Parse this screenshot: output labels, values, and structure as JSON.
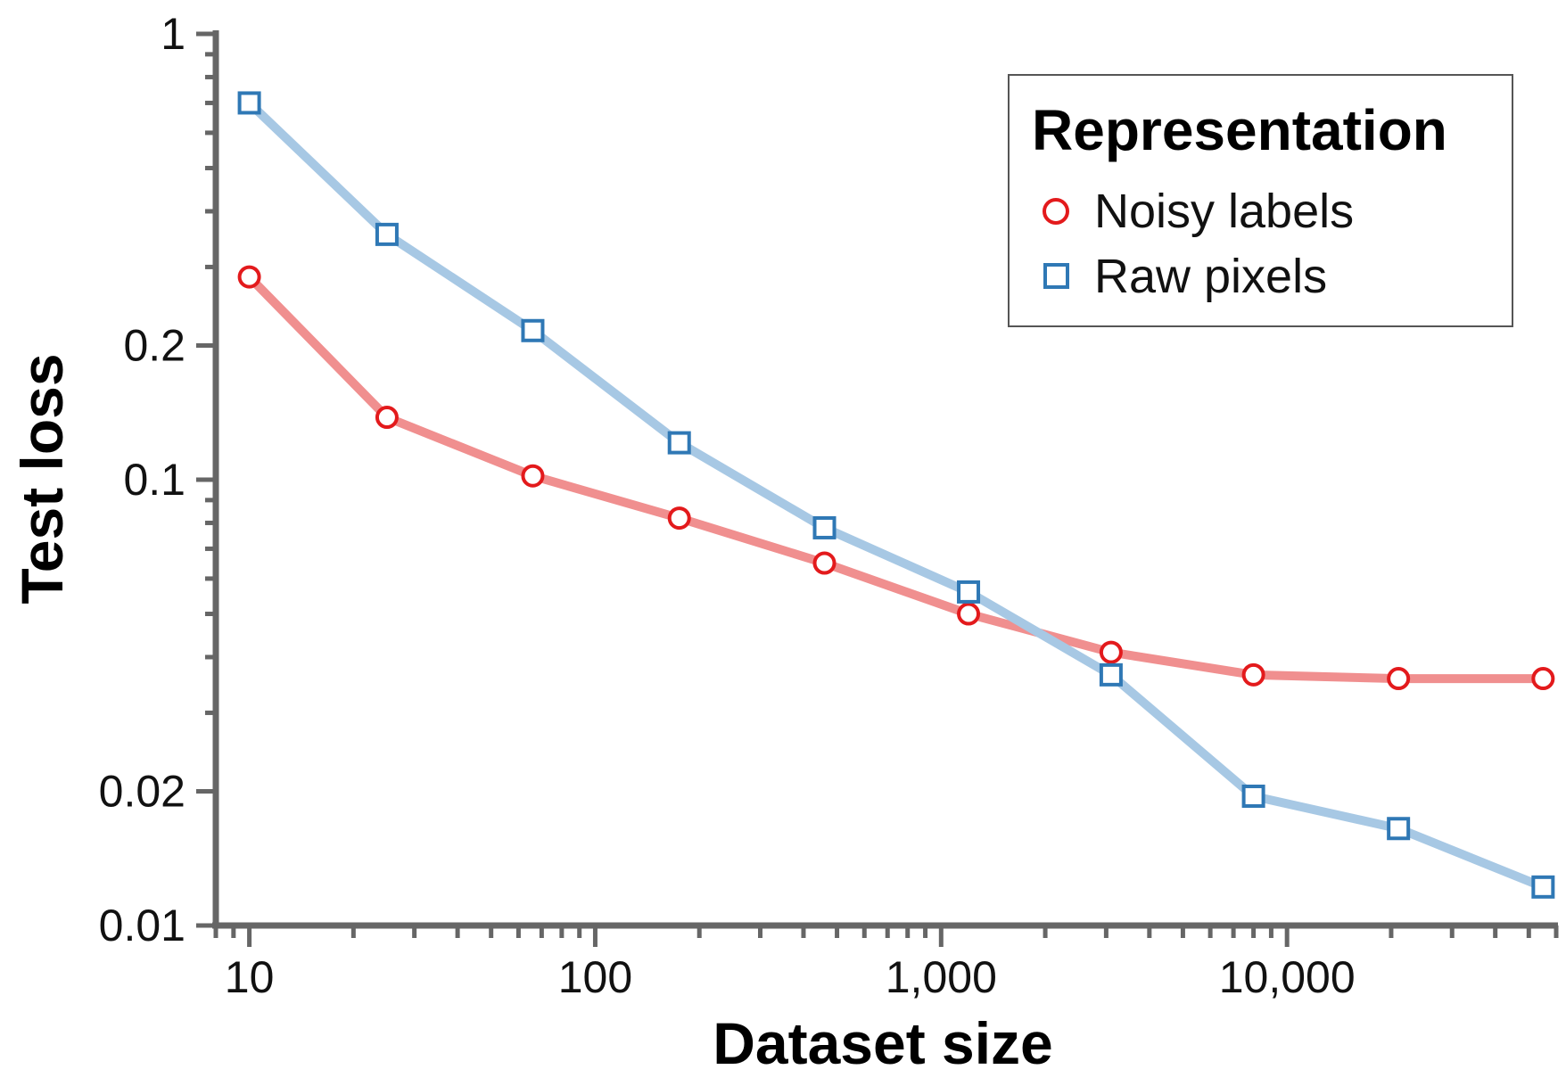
{
  "chart_data": {
    "type": "line",
    "title": "",
    "xlabel": "Dataset size",
    "ylabel": "Test loss",
    "x_scale": "log",
    "y_scale": "log",
    "xlim": [
      8,
      60000
    ],
    "ylim": [
      0.01,
      1
    ],
    "grid": false,
    "legend_position": "top-right",
    "legend_title": "Representation",
    "x_ticks": [
      {
        "value": 10,
        "label": "10"
      },
      {
        "value": 100,
        "label": "100"
      },
      {
        "value": 1000,
        "label": "1,000"
      },
      {
        "value": 10000,
        "label": "10,000"
      }
    ],
    "y_ticks": [
      {
        "value": 1,
        "label": "1"
      },
      {
        "value": 0.2,
        "label": "0.2"
      },
      {
        "value": 0.1,
        "label": "0.1"
      },
      {
        "value": 0.02,
        "label": "0.02"
      },
      {
        "value": 0.01,
        "label": "0.01"
      }
    ],
    "series": [
      {
        "name": "Noisy labels",
        "marker": "circle",
        "marker_color": "#e31a1c",
        "line_color": "#f08f8f",
        "points": [
          {
            "x": 10,
            "y": 0.285
          },
          {
            "x": 25,
            "y": 0.138
          },
          {
            "x": 66,
            "y": 0.102
          },
          {
            "x": 175,
            "y": 0.082
          },
          {
            "x": 460,
            "y": 0.065
          },
          {
            "x": 1200,
            "y": 0.05
          },
          {
            "x": 3100,
            "y": 0.041
          },
          {
            "x": 8000,
            "y": 0.0365
          },
          {
            "x": 21000,
            "y": 0.0358
          },
          {
            "x": 55000,
            "y": 0.0358
          }
        ]
      },
      {
        "name": "Raw pixels",
        "marker": "square",
        "marker_color": "#2f78b5",
        "line_color": "#a7c8e4",
        "points": [
          {
            "x": 10,
            "y": 0.7
          },
          {
            "x": 25,
            "y": 0.355
          },
          {
            "x": 66,
            "y": 0.216
          },
          {
            "x": 175,
            "y": 0.121
          },
          {
            "x": 460,
            "y": 0.078
          },
          {
            "x": 1200,
            "y": 0.056
          },
          {
            "x": 3100,
            "y": 0.0365
          },
          {
            "x": 8000,
            "y": 0.0195
          },
          {
            "x": 21000,
            "y": 0.0165
          },
          {
            "x": 55000,
            "y": 0.0122
          }
        ]
      }
    ]
  }
}
